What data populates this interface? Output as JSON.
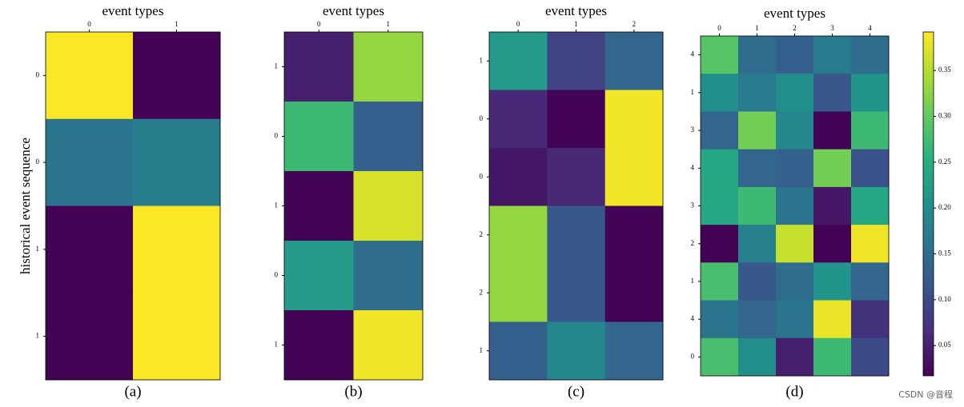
{
  "chart_data": [
    {
      "type": "heatmap",
      "x_label": "event types",
      "y_label": "historical event sequence",
      "caption": "(a)",
      "categories": [
        "0",
        "1"
      ],
      "y_categories": [
        "0",
        "0",
        "1",
        "1"
      ],
      "values": [
        [
          0.39,
          0.02
        ],
        [
          0.16,
          0.175
        ],
        [
          0.02,
          0.39
        ],
        [
          0.02,
          0.39
        ]
      ]
    },
    {
      "type": "heatmap",
      "x_label": "event types",
      "caption": "(b)",
      "categories": [
        "0",
        "1"
      ],
      "y_categories": [
        "1",
        "0",
        "1",
        "0",
        "1"
      ],
      "values": [
        [
          0.05,
          0.33
        ],
        [
          0.27,
          0.13
        ],
        [
          0.02,
          0.37
        ],
        [
          0.22,
          0.15
        ],
        [
          0.02,
          0.385
        ]
      ]
    },
    {
      "type": "heatmap",
      "x_label": "event types",
      "caption": "(c)",
      "categories": [
        "0",
        "1",
        "2"
      ],
      "y_categories": [
        "1",
        "0",
        "0",
        "2",
        "2",
        "1"
      ],
      "values": [
        [
          0.22,
          0.09,
          0.14
        ],
        [
          0.06,
          0.02,
          0.385
        ],
        [
          0.04,
          0.06,
          0.385
        ],
        [
          0.33,
          0.12,
          0.02
        ],
        [
          0.33,
          0.12,
          0.02
        ],
        [
          0.13,
          0.19,
          0.14
        ]
      ]
    },
    {
      "type": "heatmap",
      "x_label": "event types",
      "caption": "(d)",
      "categories": [
        "0",
        "1",
        "2",
        "3",
        "4"
      ],
      "y_categories": [
        "4",
        "1",
        "3",
        "4",
        "3",
        "2",
        "1",
        "4",
        "0"
      ],
      "values": [
        [
          0.29,
          0.15,
          0.13,
          0.17,
          0.15
        ],
        [
          0.2,
          0.17,
          0.2,
          0.12,
          0.21
        ],
        [
          0.14,
          0.31,
          0.19,
          0.02,
          0.27
        ],
        [
          0.24,
          0.14,
          0.13,
          0.31,
          0.11
        ],
        [
          0.24,
          0.27,
          0.16,
          0.04,
          0.24
        ],
        [
          0.02,
          0.18,
          0.36,
          0.02,
          0.385
        ],
        [
          0.28,
          0.12,
          0.15,
          0.21,
          0.14
        ],
        [
          0.16,
          0.14,
          0.16,
          0.38,
          0.07
        ],
        [
          0.28,
          0.2,
          0.05,
          0.27,
          0.1
        ]
      ]
    }
  ],
  "colorbar": {
    "colormap": "viridis",
    "lim": [
      0.017,
      0.392
    ],
    "ticks": [
      0.05,
      {
        "value": 0.1,
        "label": "0.10"
      },
      0.15,
      {
        "value": 0.2,
        "label": "0.20"
      },
      0.25,
      {
        "value": 0.3,
        "label": "0.30"
      },
      0.35
    ]
  },
  "watermark": "CSDN @音程"
}
